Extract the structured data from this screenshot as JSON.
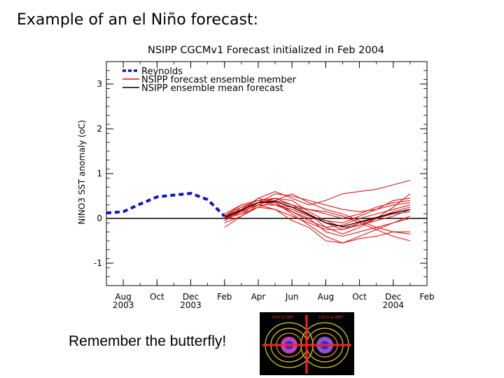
{
  "slide": {
    "title": "Example of an el Niño forecast:",
    "caption": "Remember the butterfly!",
    "butterfly_labels": [
      "HOT & DRY",
      "COLD & WET"
    ]
  },
  "chart_data": {
    "type": "line",
    "title": "NSIPP CGCMv1 Forecast initialized in Feb 2004",
    "ylabel": "NINO3 SST anomaly (oC)",
    "xlabel": "",
    "xlim_months_label": "Jul 2003 – Feb 2005",
    "ylim": [
      -1.5,
      3.5
    ],
    "yticks": [
      -1,
      0,
      1,
      2,
      3
    ],
    "ytick_labels": [
      "-1",
      "0",
      "1",
      "2",
      "3"
    ],
    "xticks": [
      {
        "month": "2003-08",
        "line1": "Aug",
        "line2": "2003"
      },
      {
        "month": "2003-10",
        "line1": "Oct",
        "line2": ""
      },
      {
        "month": "2003-12",
        "line1": "Dec",
        "line2": "2003"
      },
      {
        "month": "2004-02",
        "line1": "Feb",
        "line2": ""
      },
      {
        "month": "2004-04",
        "line1": "Apr",
        "line2": ""
      },
      {
        "month": "2004-06",
        "line1": "Jun",
        "line2": ""
      },
      {
        "month": "2004-08",
        "line1": "Aug",
        "line2": ""
      },
      {
        "month": "2004-10",
        "line1": "Oct",
        "line2": ""
      },
      {
        "month": "2004-12",
        "line1": "Dec",
        "line2": "2004"
      },
      {
        "month": "2005-02",
        "line1": "Feb",
        "line2": ""
      }
    ],
    "legend": [
      {
        "label": "Reynolds",
        "style": "dashed",
        "color": "#1010c8"
      },
      {
        "label": "NSIPP forecast ensemble member",
        "style": "solid",
        "color": "#e01010"
      },
      {
        "label": "NSIPP ensemble mean forecast",
        "style": "solid",
        "color": "#000000"
      }
    ],
    "legend_position": "top-left",
    "reference_line": 0,
    "reynolds": {
      "x": [
        "2003-07",
        "2003-08",
        "2003-09",
        "2003-10",
        "2003-11",
        "2003-12",
        "2004-01",
        "2004-02"
      ],
      "y": [
        0.12,
        0.15,
        0.32,
        0.48,
        0.52,
        0.56,
        0.42,
        0.05
      ]
    },
    "ensemble_x": [
      "2004-02",
      "2004-03",
      "2004-04",
      "2004-05",
      "2004-06",
      "2004-07",
      "2004-08",
      "2004-09",
      "2004-10",
      "2004-11",
      "2004-12",
      "2005-01"
    ],
    "ensemble_members": [
      [
        0.05,
        0.15,
        0.45,
        0.6,
        0.45,
        0.3,
        0.4,
        0.55,
        0.6,
        0.65,
        0.75,
        0.85
      ],
      [
        0.0,
        0.2,
        0.35,
        0.4,
        0.3,
        0.1,
        -0.1,
        -0.25,
        -0.1,
        0.0,
        0.1,
        0.15
      ],
      [
        -0.05,
        0.25,
        0.4,
        0.3,
        0.15,
        0.0,
        -0.3,
        -0.4,
        -0.3,
        -0.2,
        -0.1,
        0.05
      ],
      [
        0.1,
        0.3,
        0.4,
        0.45,
        0.3,
        0.2,
        0.1,
        0.0,
        0.1,
        0.25,
        0.35,
        0.4
      ],
      [
        -0.2,
        0.05,
        0.3,
        0.2,
        -0.05,
        -0.2,
        -0.5,
        -0.55,
        -0.45,
        -0.4,
        -0.3,
        -0.3
      ],
      [
        0.0,
        0.1,
        0.35,
        0.55,
        0.5,
        0.4,
        0.3,
        0.2,
        0.15,
        0.2,
        0.3,
        0.35
      ],
      [
        0.05,
        0.2,
        0.45,
        0.35,
        0.1,
        -0.15,
        -0.4,
        -0.55,
        -0.4,
        -0.25,
        -0.1,
        0.0
      ],
      [
        -0.1,
        0.05,
        0.25,
        0.4,
        0.55,
        0.35,
        0.2,
        0.1,
        -0.05,
        -0.2,
        -0.3,
        -0.35
      ],
      [
        0.05,
        0.3,
        0.4,
        0.3,
        0.2,
        0.05,
        -0.05,
        -0.2,
        -0.15,
        -0.05,
        0.05,
        0.2
      ],
      [
        0.0,
        0.15,
        0.3,
        0.3,
        0.25,
        0.2,
        0.15,
        0.05,
        -0.1,
        -0.25,
        -0.4,
        -0.5
      ],
      [
        0.05,
        0.25,
        0.35,
        0.45,
        0.3,
        0.1,
        -0.2,
        -0.35,
        -0.2,
        0.0,
        0.25,
        0.55
      ],
      [
        -0.05,
        0.15,
        0.3,
        0.45,
        0.4,
        0.15,
        -0.05,
        -0.1,
        0.05,
        0.2,
        0.4,
        0.45
      ],
      [
        0.0,
        0.1,
        0.25,
        0.2,
        0.05,
        -0.1,
        -0.25,
        -0.25,
        -0.15,
        0.0,
        0.15,
        0.25
      ],
      [
        0.05,
        0.2,
        0.35,
        0.35,
        0.15,
        -0.05,
        -0.2,
        -0.15,
        0.0,
        0.1,
        0.2,
        0.3
      ]
    ],
    "ensemble_mean": [
      0.02,
      0.18,
      0.35,
      0.38,
      0.25,
      0.08,
      -0.1,
      -0.18,
      -0.08,
      0.02,
      0.12,
      0.2
    ]
  }
}
